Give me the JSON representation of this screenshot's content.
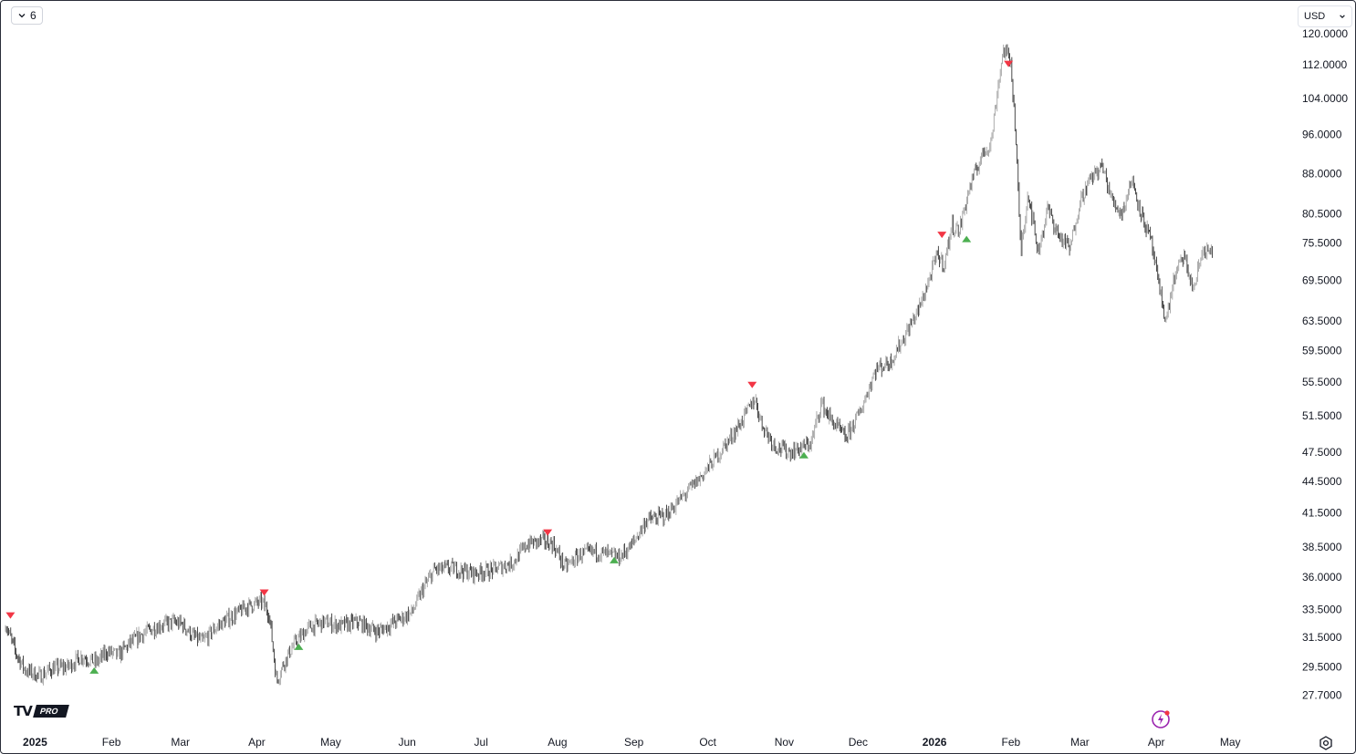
{
  "toolbar": {
    "interval_label": "6",
    "currency": "USD"
  },
  "icons": {
    "interval": "chevron-down-icon",
    "currency": "chevron-down-icon",
    "flash": "flash-icon",
    "settings": "gear-icon"
  },
  "logo": {
    "mark": "TV",
    "badge": "PRO"
  },
  "colors": {
    "candle_up": "#9e9e9e",
    "candle_down": "#2b2b2b",
    "sell_marker": "#f23645",
    "buy_marker": "#4caf50",
    "flash": "#9c27b0"
  },
  "chart_data": {
    "type": "line",
    "title": "",
    "xlabel": "",
    "ylabel": "",
    "y_scale": "log",
    "ylim": [
      25.9,
      127.0
    ],
    "y_ticks": [
      "120.0000",
      "112.0000",
      "104.0000",
      "96.0000",
      "88.0000",
      "80.5000",
      "75.5000",
      "69.5000",
      "63.5000",
      "59.5000",
      "55.5000",
      "51.5000",
      "47.5000",
      "44.5000",
      "41.5000",
      "38.5000",
      "36.0000",
      "33.5000",
      "31.5000",
      "29.5000",
      "27.7000"
    ],
    "x_ticks": [
      {
        "label": "2025",
        "date": "2025-01-01",
        "bold": true
      },
      {
        "label": "Feb",
        "date": "2025-02-01"
      },
      {
        "label": "Mar",
        "date": "2025-03-01"
      },
      {
        "label": "Apr",
        "date": "2025-04-01"
      },
      {
        "label": "May",
        "date": "2025-05-01"
      },
      {
        "label": "Jun",
        "date": "2025-06-01"
      },
      {
        "label": "Jul",
        "date": "2025-07-01"
      },
      {
        "label": "Aug",
        "date": "2025-08-01"
      },
      {
        "label": "Sep",
        "date": "2025-09-01"
      },
      {
        "label": "Oct",
        "date": "2025-10-01"
      },
      {
        "label": "Nov",
        "date": "2025-11-01"
      },
      {
        "label": "Dec",
        "date": "2025-12-01"
      },
      {
        "label": "2026",
        "date": "2026-01-01",
        "bold": true
      },
      {
        "label": "Feb",
        "date": "2026-02-01"
      },
      {
        "label": "Mar",
        "date": "2026-03-01"
      },
      {
        "label": "Apr",
        "date": "2026-04-01"
      },
      {
        "label": "May",
        "date": "2026-05-01"
      }
    ],
    "grid": false,
    "series": [
      {
        "points": [
          [
            "2024-12-20",
            32.5
          ],
          [
            "2024-12-24",
            30.5
          ],
          [
            "2024-12-28",
            29.3
          ],
          [
            "2025-01-03",
            28.9
          ],
          [
            "2025-01-08",
            29.4
          ],
          [
            "2025-01-14",
            29.5
          ],
          [
            "2025-01-20",
            30.2
          ],
          [
            "2025-01-26",
            29.8
          ],
          [
            "2025-01-30",
            30.5
          ],
          [
            "2025-02-04",
            30.3
          ],
          [
            "2025-02-08",
            31.0
          ],
          [
            "2025-02-14",
            31.8
          ],
          [
            "2025-02-20",
            32.3
          ],
          [
            "2025-02-26",
            32.6
          ],
          [
            "2025-03-02",
            32.4
          ],
          [
            "2025-03-06",
            31.6
          ],
          [
            "2025-03-10",
            31.2
          ],
          [
            "2025-03-16",
            32.3
          ],
          [
            "2025-03-22",
            33.0
          ],
          [
            "2025-03-28",
            33.7
          ],
          [
            "2025-04-03",
            34.1
          ],
          [
            "2025-04-06",
            33.2
          ],
          [
            "2025-04-09",
            28.6
          ],
          [
            "2025-04-12",
            29.8
          ],
          [
            "2025-04-16",
            31.0
          ],
          [
            "2025-04-22",
            32.2
          ],
          [
            "2025-04-28",
            32.6
          ],
          [
            "2025-05-05",
            32.3
          ],
          [
            "2025-05-12",
            32.6
          ],
          [
            "2025-05-20",
            31.9
          ],
          [
            "2025-05-28",
            32.7
          ],
          [
            "2025-06-03",
            33.3
          ],
          [
            "2025-06-07",
            34.9
          ],
          [
            "2025-06-12",
            36.6
          ],
          [
            "2025-06-20",
            36.7
          ],
          [
            "2025-06-28",
            36.3
          ],
          [
            "2025-07-06",
            36.6
          ],
          [
            "2025-07-14",
            37.2
          ],
          [
            "2025-07-20",
            38.8
          ],
          [
            "2025-07-26",
            39.0
          ],
          [
            "2025-07-30",
            38.8
          ],
          [
            "2025-08-04",
            36.8
          ],
          [
            "2025-08-10",
            37.8
          ],
          [
            "2025-08-16",
            38.1
          ],
          [
            "2025-08-22",
            37.8
          ],
          [
            "2025-08-26",
            37.6
          ],
          [
            "2025-08-31",
            38.6
          ],
          [
            "2025-09-06",
            40.8
          ],
          [
            "2025-09-14",
            41.3
          ],
          [
            "2025-09-20",
            42.8
          ],
          [
            "2025-09-28",
            44.9
          ],
          [
            "2025-10-06",
            47.5
          ],
          [
            "2025-10-14",
            50.5
          ],
          [
            "2025-10-20",
            53.5
          ],
          [
            "2025-10-23",
            50.5
          ],
          [
            "2025-10-28",
            48.2
          ],
          [
            "2025-11-03",
            47.5
          ],
          [
            "2025-11-08",
            47.9
          ],
          [
            "2025-11-12",
            48.5
          ],
          [
            "2025-11-16",
            53.0
          ],
          [
            "2025-11-20",
            51.0
          ],
          [
            "2025-11-26",
            49.0
          ],
          [
            "2025-12-02",
            52.0
          ],
          [
            "2025-12-08",
            57.0
          ],
          [
            "2025-12-14",
            58.0
          ],
          [
            "2025-12-20",
            61.5
          ],
          [
            "2025-12-26",
            65.5
          ],
          [
            "2025-12-31",
            71.0
          ],
          [
            "2026-01-02",
            73.5
          ],
          [
            "2026-01-05",
            72.0
          ],
          [
            "2026-01-08",
            78.5
          ],
          [
            "2026-01-11",
            77.5
          ],
          [
            "2026-01-15",
            85.0
          ],
          [
            "2026-01-20",
            91.5
          ],
          [
            "2026-01-24",
            94.5
          ],
          [
            "2026-01-27",
            108.0
          ],
          [
            "2026-01-29",
            116.0
          ],
          [
            "2026-02-01",
            113.0
          ],
          [
            "2026-02-03",
            95.0
          ],
          [
            "2026-02-05",
            74.0
          ],
          [
            "2026-02-08",
            84.5
          ],
          [
            "2026-02-12",
            74.0
          ],
          [
            "2026-02-16",
            81.5
          ],
          [
            "2026-02-20",
            77.0
          ],
          [
            "2026-02-25",
            74.5
          ],
          [
            "2026-03-01",
            83.0
          ],
          [
            "2026-03-06",
            87.5
          ],
          [
            "2026-03-10",
            89.5
          ],
          [
            "2026-03-14",
            83.0
          ],
          [
            "2026-03-18",
            80.5
          ],
          [
            "2026-03-22",
            87.0
          ],
          [
            "2026-03-26",
            80.5
          ],
          [
            "2026-03-30",
            75.5
          ],
          [
            "2026-04-02",
            68.5
          ],
          [
            "2026-04-05",
            63.5
          ],
          [
            "2026-04-08",
            69.5
          ],
          [
            "2026-04-12",
            73.5
          ],
          [
            "2026-04-16",
            68.0
          ],
          [
            "2026-04-20",
            74.5
          ],
          [
            "2026-04-24",
            73.5
          ]
        ]
      }
    ],
    "markers": [
      {
        "type": "sell",
        "date": "2024-12-22",
        "price": 32.7
      },
      {
        "type": "buy",
        "date": "2025-01-25",
        "price": 29.6
      },
      {
        "type": "sell",
        "date": "2025-04-04",
        "price": 34.4
      },
      {
        "type": "buy",
        "date": "2025-04-18",
        "price": 31.2
      },
      {
        "type": "sell",
        "date": "2025-07-28",
        "price": 39.3
      },
      {
        "type": "buy",
        "date": "2025-08-24",
        "price": 37.8
      },
      {
        "type": "sell",
        "date": "2025-10-19",
        "price": 54.5
      },
      {
        "type": "buy",
        "date": "2025-11-09",
        "price": 47.7
      },
      {
        "type": "sell",
        "date": "2026-01-04",
        "price": 76.0
      },
      {
        "type": "buy",
        "date": "2026-01-14",
        "price": 77.0
      },
      {
        "type": "sell",
        "date": "2026-01-31",
        "price": 111.0
      }
    ]
  }
}
